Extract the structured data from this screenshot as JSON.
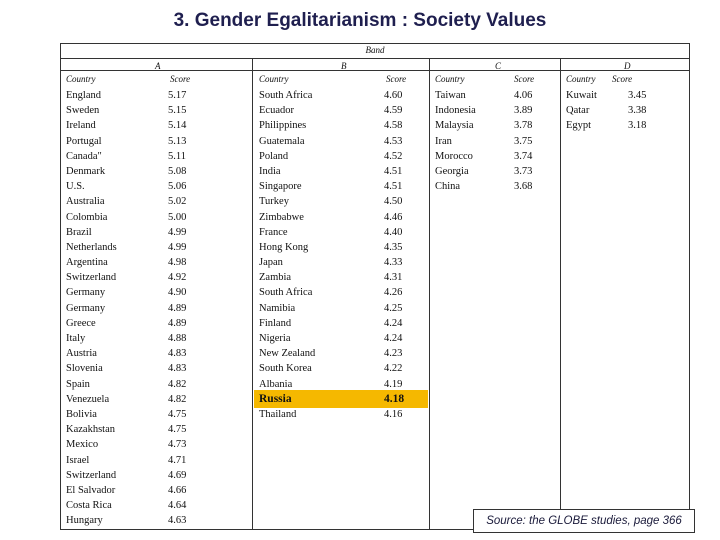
{
  "title": "3. Gender Egalitarianism : Society Values",
  "table": {
    "band_label": "Band",
    "band_letters": [
      "A",
      "B",
      "C",
      "D"
    ],
    "country_header": "Country",
    "score_header": "Score",
    "bands": {
      "A": {
        "countries": [
          "England",
          "Sweden",
          "Ireland",
          "Portugal",
          "Canada\"",
          "Denmark",
          "U.S.",
          "Australia",
          "Colombia",
          "Brazil",
          "Netherlands",
          "Argentina",
          "Switzerland",
          "Germany",
          "Germany",
          "Greece",
          "Italy",
          "Austria",
          "Slovenia",
          "Spain",
          "Venezuela",
          "Bolivia",
          "Kazakhstan",
          "Mexico",
          "Israel",
          "Switzerland",
          "El Salvador",
          "Costa Rica",
          "Hungary"
        ],
        "scores": [
          "5.17",
          "5.15",
          "5.14",
          "5.13",
          "5.11",
          "5.08",
          "5.06",
          "5.02",
          "5.00",
          "4.99",
          "4.99",
          "4.98",
          "4.92",
          "4.90",
          "4.89",
          "4.89",
          "4.88",
          "4.83",
          "4.83",
          "4.82",
          "4.82",
          "4.75",
          "4.75",
          "4.73",
          "4.71",
          "4.69",
          "4.66",
          "4.64",
          "4.63"
        ]
      },
      "B": {
        "countries": [
          "South Africa",
          "Ecuador",
          "Philippines",
          "Guatemala",
          "Poland",
          "India",
          "Singapore",
          "Turkey",
          "Zimbabwe",
          "France",
          "Hong Kong",
          "Japan",
          "Zambia",
          "South Africa",
          "Namibia",
          "Finland",
          "Nigeria",
          "New Zealand",
          "South Korea",
          "Albania",
          "Russia",
          "Thailand"
        ],
        "scores": [
          "4.60",
          "4.59",
          "4.58",
          "4.53",
          "4.52",
          "4.51",
          "4.51",
          "4.50",
          "4.46",
          "4.40",
          "4.35",
          "4.33",
          "4.31",
          "4.26",
          "4.25",
          "4.24",
          "4.24",
          "4.23",
          "4.22",
          "4.19",
          "4.18",
          "4.16"
        ],
        "highlight_country": "Russia",
        "highlight_color": "#f5b800"
      },
      "C": {
        "countries": [
          "Taiwan",
          "Indonesia",
          "Malaysia",
          "Iran",
          "Morocco",
          "Georgia",
          "China"
        ],
        "scores": [
          "4.06",
          "3.89",
          "3.78",
          "3.75",
          "3.74",
          "3.73",
          "3.68"
        ]
      },
      "D": {
        "countries": [
          "Kuwait",
          "Qatar",
          "Egypt"
        ],
        "scores": [
          "3.45",
          "3.38",
          "3.18"
        ]
      }
    }
  },
  "source": "Source: the GLOBE studies, page 366"
}
